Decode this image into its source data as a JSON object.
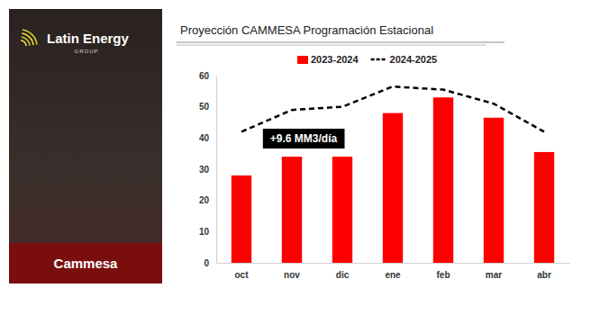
{
  "chart_data": {
    "type": "bar",
    "title": "Proyección CAMMESA Programación Estacional",
    "categories": [
      "oct",
      "nov",
      "dic",
      "ene",
      "feb",
      "mar",
      "abr"
    ],
    "series": [
      {
        "name": "2023-2024",
        "type": "bar",
        "color": "#ff0000",
        "values": [
          28,
          34,
          34,
          48,
          53,
          46.5,
          35.5
        ]
      },
      {
        "name": "2024-2025",
        "type": "line",
        "color": "#000000",
        "line_style": "dashed",
        "values": [
          42,
          49,
          50,
          56.5,
          55.5,
          51,
          42
        ]
      }
    ],
    "annotation": "+9.6 MM3/día",
    "ylim": [
      0,
      60
    ],
    "yticks": [
      0,
      10,
      20,
      30,
      40,
      50,
      60
    ],
    "grid": false,
    "legend": "top"
  },
  "sidebar": {
    "brand": "Latin Energy",
    "brand_sub": "GROUP",
    "label": "Cammesa"
  }
}
